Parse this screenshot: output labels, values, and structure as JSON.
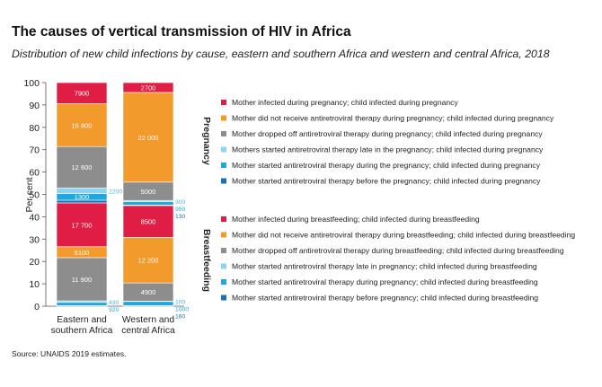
{
  "title": "The causes of vertical transmission of HIV in Africa",
  "subtitle": "Distribution of new child infections by cause, eastern and southern Africa and western and central Africa, 2018",
  "source": "Source: UNAIDS 2019 estimates.",
  "chart_data": {
    "type": "bar",
    "stacked": true,
    "ylabel": "Per cent",
    "ylim": [
      0,
      100
    ],
    "yticks": [
      0,
      10,
      20,
      30,
      40,
      50,
      60,
      70,
      80,
      90,
      100
    ],
    "grid": false,
    "legend_position": "right",
    "categories": [
      {
        "label_lines": [
          "Eastern and",
          "southern Africa"
        ]
      },
      {
        "label_lines": [
          "Western and",
          "central Africa"
        ]
      }
    ],
    "group_labels": {
      "pregnancy": "Pregnancy",
      "breastfeeding": "Breastfeeding"
    },
    "series": [
      {
        "name": "Mother started antiretroviral therapy before pregnancy; child infected during breastfeeding",
        "group": "breastfeeding",
        "color": "#1c6fb3",
        "pct": [
          0.2,
          0.3
        ],
        "labels": [
          "",
          "160"
        ]
      },
      {
        "name": "Mother started antiretroviral therapy during pregnancy; child infected during breastfeeding",
        "group": "breastfeeding",
        "color": "#1fa8e0",
        "pct": [
          1.5,
          1.8
        ],
        "labels": [
          "920",
          "1000"
        ]
      },
      {
        "name": "Mother started antiretroviral therapy late in pregnancy; child infected during breastfeeding",
        "group": "breastfeeding",
        "color": "#8fd4ee",
        "pct": [
          0.7,
          0.2
        ],
        "labels": [
          "430",
          "100"
        ]
      },
      {
        "name": "Mother dropped off antiretroviral therapy during breastfeeding; child infected during breastfeeding",
        "group": "breastfeeding",
        "color": "#8d8d8d",
        "pct": [
          19.3,
          8.1
        ],
        "labels": [
          "11 900",
          "4900"
        ]
      },
      {
        "name": "Mother did not receive antiretroviral therapy during breastfeeding; child infected during breastfeeding",
        "group": "breastfeeding",
        "color": "#f39a2d",
        "pct": [
          4.9,
          20.4
        ],
        "labels": [
          "6100",
          "12 200"
        ]
      },
      {
        "name": "Mother infected during breastfeeding; child infected during breastfeeding",
        "group": "breastfeeding",
        "color": "#e01e45",
        "pct": [
          19.6,
          14.2
        ],
        "labels": [
          "17 700",
          "8500"
        ]
      },
      {
        "name": "Mother started antiretroviral therapy before the pregnancy; child infected during pregnancy",
        "group": "pregnancy",
        "color": "#1c6fb3",
        "pct": [
          1.2,
          0.2
        ],
        "labels": [
          "",
          "130"
        ]
      },
      {
        "name": "Mother started antiretroviral therapy during the pregnancy; child infected during pregnancy",
        "group": "pregnancy",
        "color": "#1fa8e0",
        "pct": [
          3.0,
          1.6
        ],
        "labels": [
          "1300",
          "950"
        ]
      },
      {
        "name": "Mothers started antiretroviral therapy late in the pregnancy; child infected during pregnancy",
        "group": "pregnancy",
        "color": "#8fd4ee",
        "pct": [
          2.5,
          0.5
        ],
        "labels": [
          "2200",
          "300"
        ]
      },
      {
        "name": "Mother dropped off antiretroviral therapy during pregnancy; child infected during pregnancy",
        "group": "pregnancy",
        "color": "#8d8d8d",
        "pct": [
          18.5,
          8.2
        ],
        "labels": [
          "12 600",
          "5000"
        ]
      },
      {
        "name": "Mother did not receive antiretroviral therapy during pregnancy; child infected during pregnancy",
        "group": "pregnancy",
        "color": "#f39a2d",
        "pct": [
          19.2,
          40.1
        ],
        "labels": [
          "16 800",
          "22 000"
        ]
      },
      {
        "name": "Mother infected during pregnancy; child infected during pregnancy",
        "group": "pregnancy",
        "color": "#e01e45",
        "pct": [
          9.4,
          4.4
        ],
        "labels": [
          "7900",
          "2700"
        ]
      }
    ]
  }
}
